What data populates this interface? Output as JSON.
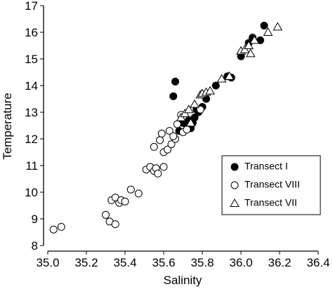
{
  "chart_data": {
    "type": "scatter",
    "x_label": "Salinity",
    "y_label": "Temperature",
    "xlim": [
      35.0,
      36.4
    ],
    "xticks": [
      {
        "value": 35.0,
        "label": "35.0"
      },
      35.2,
      35.4,
      35.6,
      35.8,
      {
        "value": 36.0,
        "label": "36.0"
      },
      36.2,
      36.4
    ],
    "ylim": [
      8,
      17
    ],
    "yticks": [
      8,
      9,
      10,
      11,
      12,
      13,
      14,
      15,
      16,
      17
    ],
    "legend": "lower-right",
    "series": [
      {
        "name": "Transect I",
        "color": "#000000",
        "marker": "filled-circle",
        "x": [
          35.66,
          35.65,
          35.7,
          35.72,
          35.74,
          35.75,
          35.76,
          35.78,
          35.8,
          35.82,
          35.87,
          35.93,
          35.95,
          36.0,
          36.04,
          36.06,
          36.1,
          36.12,
          35.68,
          35.73,
          35.77
        ],
        "values": [
          14.15,
          13.6,
          12.6,
          12.5,
          12.4,
          12.6,
          12.8,
          13.0,
          13.2,
          13.5,
          14.0,
          14.35,
          14.3,
          15.1,
          15.6,
          15.8,
          15.7,
          16.25,
          12.3,
          12.7,
          13.1
        ]
      },
      {
        "name": "Transect VIII",
        "color": "#000000",
        "marker": "circle",
        "x": [
          35.03,
          35.07,
          35.3,
          35.32,
          35.35,
          35.33,
          35.35,
          35.37,
          35.38,
          35.4,
          35.43,
          35.47,
          35.51,
          35.53,
          35.55,
          35.56,
          35.57,
          35.6,
          35.55,
          35.58,
          35.59,
          35.6,
          35.62,
          35.63,
          35.64,
          35.66,
          35.67,
          35.7,
          35.72,
          35.65,
          35.69,
          35.79
        ],
        "values": [
          8.6,
          8.7,
          9.15,
          8.9,
          8.8,
          9.7,
          9.8,
          9.6,
          9.7,
          9.65,
          10.1,
          9.95,
          10.85,
          10.95,
          10.8,
          10.9,
          10.7,
          10.95,
          11.7,
          11.95,
          12.2,
          11.5,
          11.6,
          12.3,
          11.8,
          12.0,
          12.55,
          12.25,
          12.35,
          12.1,
          12.9,
          13.1
        ]
      },
      {
        "name": "Transect VII",
        "color": "#000000",
        "marker": "triangle",
        "x": [
          35.69,
          35.71,
          35.73,
          35.76,
          35.79,
          35.8,
          35.82,
          35.84,
          35.9,
          35.94,
          36.0,
          36.02,
          36.04,
          36.07,
          36.14,
          36.19,
          36.05,
          35.74
        ],
        "values": [
          12.8,
          12.95,
          13.1,
          13.3,
          13.65,
          13.7,
          13.75,
          13.8,
          14.25,
          14.35,
          15.3,
          15.35,
          15.5,
          15.7,
          16.0,
          16.2,
          15.2,
          12.6
        ]
      }
    ]
  }
}
